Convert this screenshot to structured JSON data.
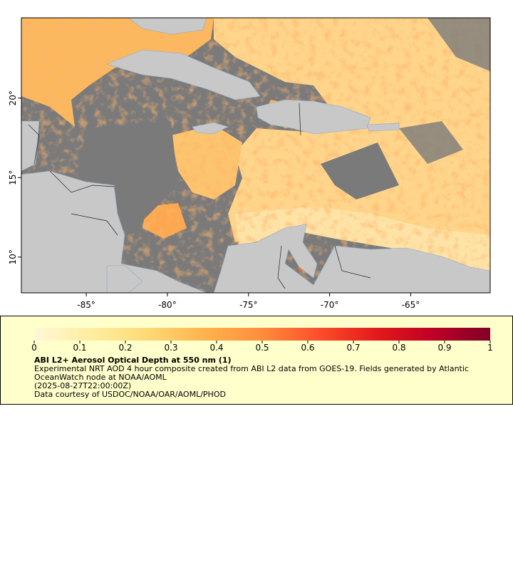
{
  "map": {
    "xlim": [
      -89,
      -60.1
    ],
    "ylim": [
      7.75,
      25.05
    ],
    "xticks": [
      {
        "value": -85,
        "label": "-85°"
      },
      {
        "value": -80,
        "label": "-80°"
      },
      {
        "value": -75,
        "label": "-75°"
      },
      {
        "value": -70,
        "label": "-70°"
      },
      {
        "value": -65,
        "label": "-65°"
      }
    ],
    "yticks": [
      {
        "value": 10,
        "label": "10°"
      },
      {
        "value": 15,
        "label": "15°"
      },
      {
        "value": 20,
        "label": "20°"
      }
    ]
  },
  "colorbar": {
    "range": [
      0,
      1
    ],
    "ticks": [
      0,
      0.1,
      0.2,
      0.3,
      0.4,
      0.5,
      0.6,
      0.7,
      0.8,
      0.9,
      1
    ],
    "colors": [
      "#fff7d6",
      "#ffeda0",
      "#fed976",
      "#feb24c",
      "#fd8d3c",
      "#fc4e2a",
      "#e31a1c",
      "#bd0026",
      "#800026"
    ]
  },
  "caption": {
    "title": "ABI L2+ Aerosol Optical Depth at 550 nm (1)",
    "description": "Experimental NRT AOD 4 hour composite created from ABI L2 data from GOES-19. Fields generated by Atlantic OceanWatch node at NOAA/AOML",
    "time": "(2025-08-27T22:00:00Z)",
    "credit": "Data courtesy of USDOC/NOAA/OAR/AOML/PHOD"
  }
}
